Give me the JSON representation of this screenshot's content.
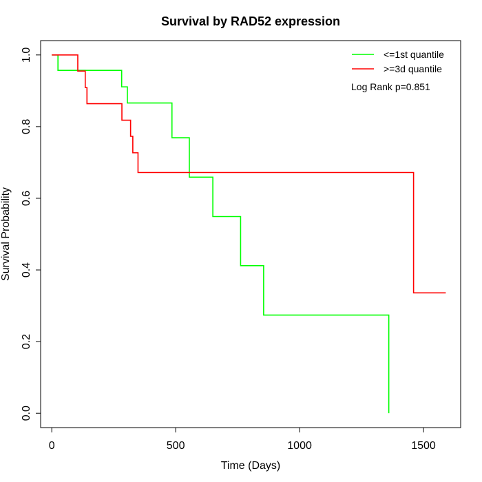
{
  "chart_data": {
    "type": "line",
    "step": true,
    "title": "Survival by RAD52 expression",
    "xlabel": "Time (Days)",
    "ylabel": "Survival Probability",
    "xlim": [
      -45,
      1650
    ],
    "ylim": [
      -0.04,
      1.04
    ],
    "xticks": [
      0,
      500,
      1000,
      1500
    ],
    "yticks": [
      0.0,
      0.2,
      0.4,
      0.6,
      0.8,
      1.0
    ],
    "xtick_labels": [
      "0",
      "500",
      "1000",
      "1500"
    ],
    "ytick_labels": [
      "0.0",
      "0.2",
      "0.4",
      "0.6",
      "0.8",
      "1.0"
    ],
    "grid": false,
    "legend_position": "top-right",
    "annotation": "Log Rank p=0.851",
    "series": [
      {
        "name": "<=1st quantile",
        "color": "#00ff00",
        "points": [
          [
            0,
            1.0
          ],
          [
            25,
            0.957
          ],
          [
            282,
            0.911
          ],
          [
            305,
            0.866
          ],
          [
            485,
            0.769
          ],
          [
            555,
            0.659
          ],
          [
            650,
            0.549
          ],
          [
            762,
            0.412
          ],
          [
            855,
            0.274
          ],
          [
            1360,
            0.0
          ]
        ]
      },
      {
        "name": ">=3d quantile",
        "color": "#ff0000",
        "points": [
          [
            0,
            1.0
          ],
          [
            105,
            0.955
          ],
          [
            135,
            0.909
          ],
          [
            142,
            0.864
          ],
          [
            283,
            0.818
          ],
          [
            318,
            0.773
          ],
          [
            327,
            0.727
          ],
          [
            348,
            0.672
          ],
          [
            1460,
            0.336
          ],
          [
            1590,
            0.336
          ]
        ]
      }
    ]
  }
}
